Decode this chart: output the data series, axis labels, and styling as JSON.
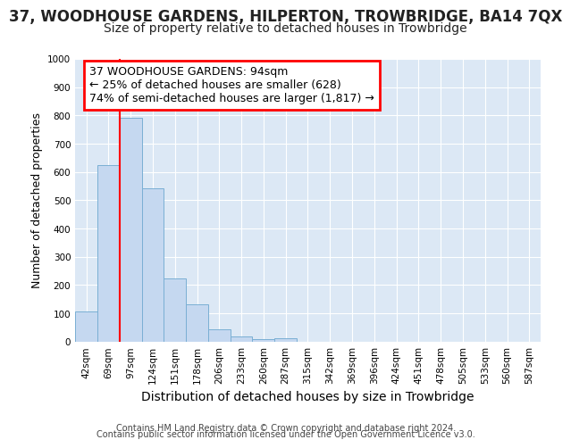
{
  "title": "37, WOODHOUSE GARDENS, HILPERTON, TROWBRIDGE, BA14 7QX",
  "subtitle": "Size of property relative to detached houses in Trowbridge",
  "xlabel": "Distribution of detached houses by size in Trowbridge",
  "ylabel": "Number of detached properties",
  "footer_line1": "Contains HM Land Registry data © Crown copyright and database right 2024.",
  "footer_line2": "Contains public sector information licensed under the Open Government Licence v3.0.",
  "bar_labels": [
    "42sqm",
    "69sqm",
    "97sqm",
    "124sqm",
    "151sqm",
    "178sqm",
    "206sqm",
    "233sqm",
    "260sqm",
    "287sqm",
    "315sqm",
    "342sqm",
    "369sqm",
    "396sqm",
    "424sqm",
    "451sqm",
    "478sqm",
    "505sqm",
    "533sqm",
    "560sqm",
    "587sqm"
  ],
  "bar_values": [
    105,
    625,
    793,
    543,
    222,
    133,
    42,
    17,
    10,
    12,
    0,
    0,
    0,
    0,
    0,
    0,
    0,
    0,
    0,
    0,
    0
  ],
  "bar_color": "#c5d8f0",
  "bar_edge_color": "#7aafd4",
  "ylim": [
    0,
    1000
  ],
  "yticks": [
    0,
    100,
    200,
    300,
    400,
    500,
    600,
    700,
    800,
    900,
    1000
  ],
  "redline_x": 1.5,
  "annotation_line1": "37 WOODHOUSE GARDENS: 94sqm",
  "annotation_line2": "← 25% of detached houses are smaller (628)",
  "annotation_line3": "74% of semi-detached houses are larger (1,817) →",
  "fig_bg_color": "#ffffff",
  "plot_bg_color": "#dce8f5",
  "grid_color": "#ffffff",
  "title_fontsize": 12,
  "subtitle_fontsize": 10,
  "annotation_fontsize": 9,
  "ylabel_fontsize": 9,
  "xlabel_fontsize": 10,
  "footer_fontsize": 7
}
